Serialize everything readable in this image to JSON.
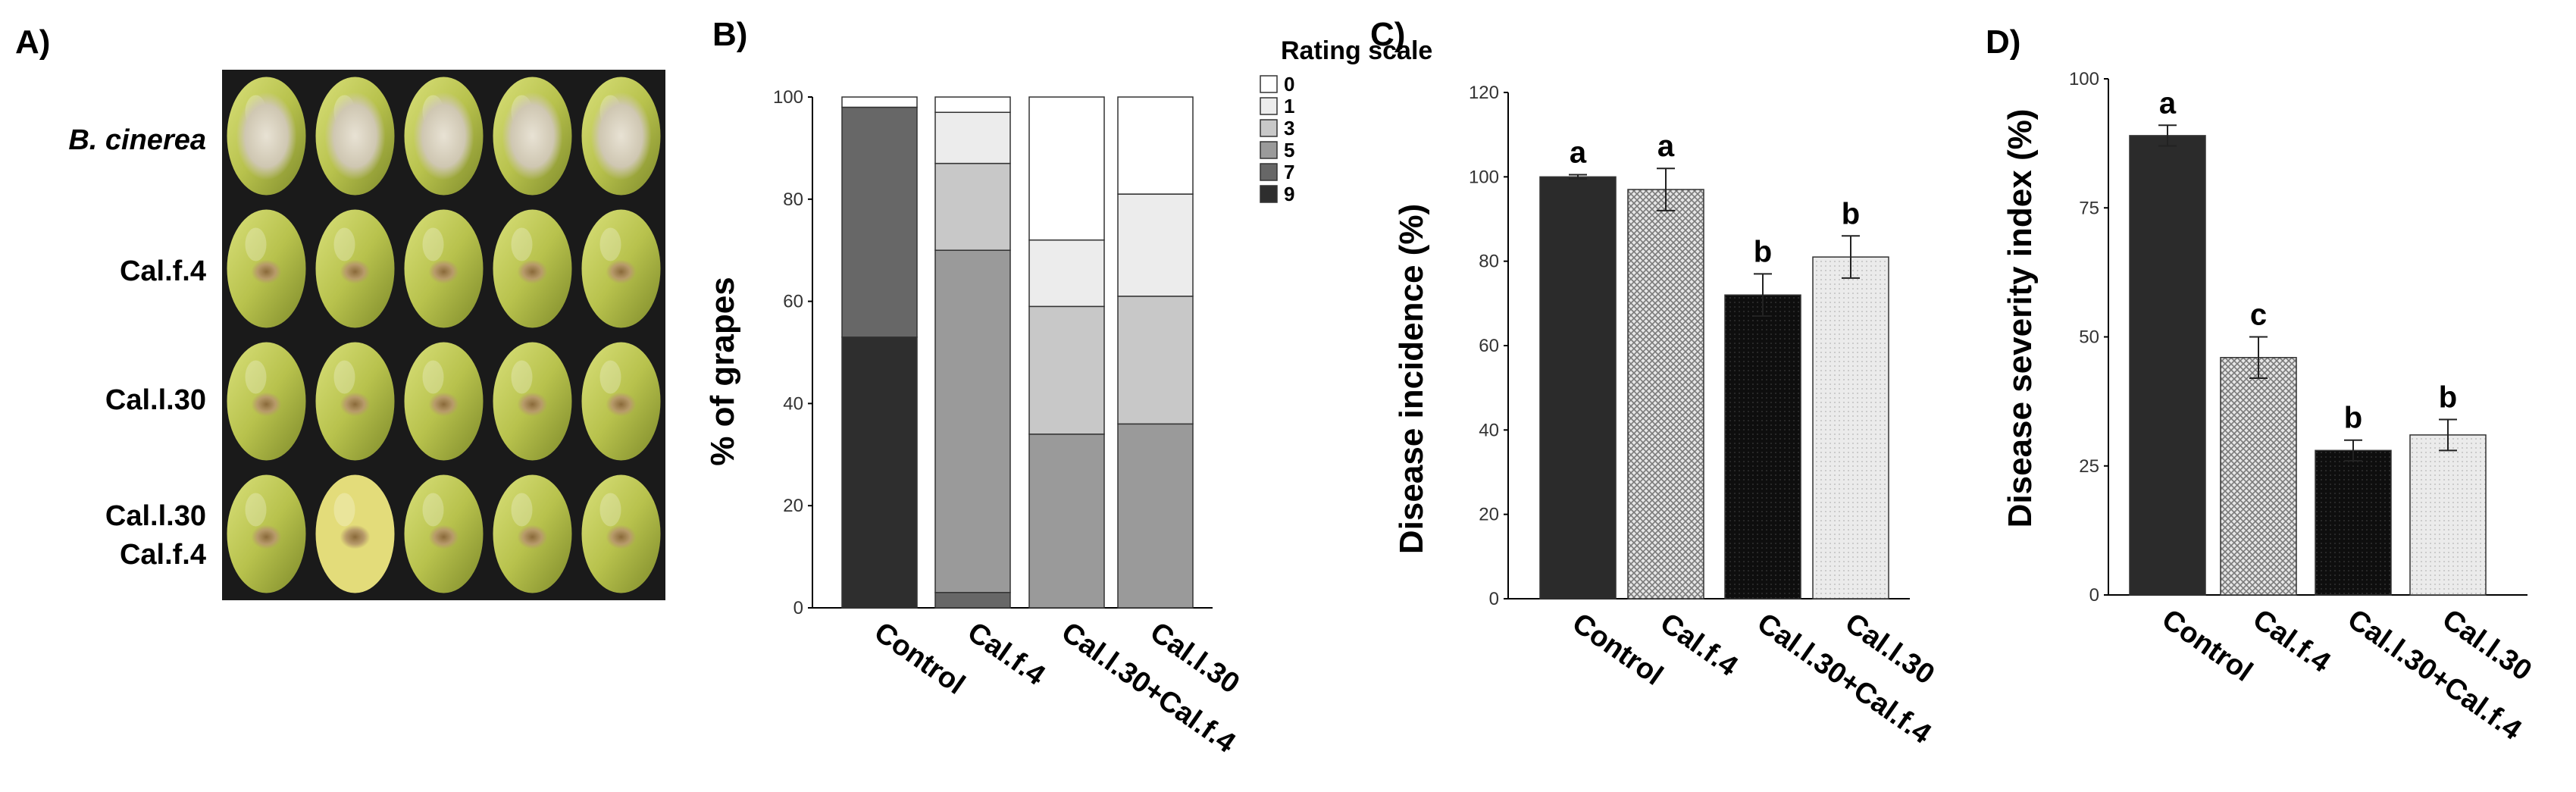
{
  "panels": {
    "a": {
      "letter": "A)"
    },
    "b": {
      "letter": "B)"
    },
    "c": {
      "letter": "C)"
    },
    "d": {
      "letter": "D)"
    }
  },
  "photo_grid": {
    "row_labels": [
      "B. cinerea",
      "Cal.f.4",
      "Cal.l.30",
      "Cal.l.30",
      "Cal.f.4"
    ],
    "rows": 4,
    "columns": 5
  },
  "colors": {
    "nine": "#2e2e2e",
    "seven": "#676767",
    "five": "#9a9a9a",
    "three": "#c8c8c8",
    "one": "#ececec",
    "zero": "#ffffff",
    "control_bar": "#2b2b2b",
    "calf4_bar": "#d9d9d9",
    "combo_bar": "#111111",
    "call30_bar": "#e6e6e6"
  },
  "chart_data": [
    {
      "type": "bar",
      "stacked": true,
      "panel": "B",
      "ylabel": "% of grapes",
      "ylim": [
        0,
        100
      ],
      "yticks": [
        "0",
        "20",
        "40",
        "60",
        "80",
        "100"
      ],
      "categories": [
        "Control",
        "Cal.f.4",
        "Cal.l.30+Cal.f.4",
        "Cal.l.30"
      ],
      "legend_title": "Rating scale",
      "legend": [
        "0",
        "1",
        "3",
        "5",
        "7",
        "9"
      ],
      "series": [
        {
          "name": "9",
          "values": [
            53,
            0,
            0,
            0
          ]
        },
        {
          "name": "7",
          "values": [
            45,
            3,
            0,
            0
          ]
        },
        {
          "name": "5",
          "values": [
            0,
            67,
            34,
            36
          ]
        },
        {
          "name": "3",
          "values": [
            0,
            17,
            25,
            25
          ]
        },
        {
          "name": "1",
          "values": [
            0,
            10,
            13,
            20
          ]
        },
        {
          "name": "0",
          "values": [
            2,
            3,
            28,
            19
          ]
        }
      ]
    },
    {
      "type": "bar",
      "panel": "C",
      "ylabel": "Disease incidence (%)",
      "ylim": [
        0,
        120
      ],
      "yticks": [
        "0",
        "20",
        "40",
        "60",
        "80",
        "100",
        "120"
      ],
      "categories": [
        "Control",
        "Cal.f.4",
        "Cal.l.30+Cal.f.4",
        "Cal.l.30"
      ],
      "values": [
        100,
        97,
        72,
        81
      ],
      "errors": [
        0.5,
        5,
        5,
        5
      ],
      "letters": [
        "a",
        "a",
        "b",
        "b"
      ]
    },
    {
      "type": "bar",
      "panel": "D",
      "ylabel": "Disease severity index (%)",
      "ylim": [
        0,
        100
      ],
      "yticks": [
        "0",
        "25",
        "50",
        "75",
        "100"
      ],
      "categories": [
        "Control",
        "Cal.f.4",
        "Cal.l.30+Cal.f.4",
        "Cal.l.30"
      ],
      "values": [
        89,
        46,
        28,
        31
      ],
      "errors": [
        2,
        4,
        2,
        3
      ],
      "letters": [
        "a",
        "c",
        "b",
        "b"
      ]
    }
  ]
}
